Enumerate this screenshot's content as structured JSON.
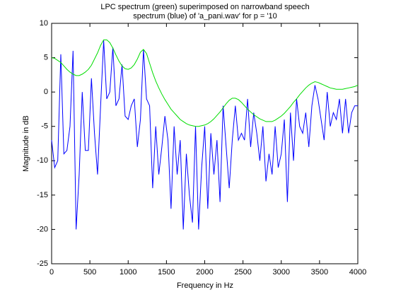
{
  "chart_data": {
    "type": "line",
    "title": [
      "LPC spectrum (green) superimposed on narrowband speech",
      "spectrum (blue) of 'a_pani.wav' for p = '10"
    ],
    "xlabel": "Frequency in Hz",
    "ylabel": "Magnitude in dB",
    "x": [
      0,
      40,
      80,
      120,
      160,
      200,
      240,
      280,
      320,
      360,
      400,
      440,
      480,
      520,
      560,
      600,
      640,
      680,
      720,
      760,
      800,
      840,
      880,
      920,
      960,
      1000,
      1040,
      1080,
      1120,
      1160,
      1200,
      1240,
      1280,
      1320,
      1360,
      1400,
      1440,
      1480,
      1520,
      1560,
      1600,
      1640,
      1680,
      1720,
      1760,
      1800,
      1840,
      1880,
      1920,
      1960,
      2000,
      2040,
      2080,
      2120,
      2160,
      2200,
      2240,
      2280,
      2320,
      2360,
      2400,
      2440,
      2480,
      2520,
      2560,
      2600,
      2640,
      2680,
      2720,
      2760,
      2800,
      2840,
      2880,
      2920,
      2960,
      3000,
      3040,
      3080,
      3120,
      3160,
      3200,
      3240,
      3280,
      3320,
      3360,
      3400,
      3440,
      3480,
      3520,
      3560,
      3600,
      3640,
      3680,
      3720,
      3760,
      3800,
      3840,
      3880,
      3920,
      3960,
      4000
    ],
    "series": [
      {
        "color": "#0000ff",
        "values": [
          -7,
          -11,
          -10,
          5.5,
          -9,
          -8.5,
          -5,
          6,
          -20,
          -12,
          0,
          -8.5,
          -8.5,
          2,
          -6,
          -12,
          -2,
          7.5,
          -1,
          0,
          6.5,
          -2,
          -1,
          4,
          -3.5,
          -4,
          -2,
          -1,
          -8,
          -4,
          6.2,
          -1,
          -2,
          -14,
          -5,
          -12,
          -8,
          -3.5,
          -7,
          -17,
          -5,
          -12,
          -7,
          -20,
          -9,
          -15,
          -19,
          -5,
          -20,
          -11,
          -5,
          -17,
          -6,
          -12,
          -7,
          -16,
          -2,
          -8,
          -14,
          -7,
          -2,
          -7,
          -6,
          -7,
          -1,
          -8,
          -3,
          -6,
          -10,
          -5,
          -13,
          -9,
          -12,
          -5,
          -11,
          -9,
          -4,
          -16,
          -3,
          -10,
          -1,
          -5,
          -6,
          -3,
          -8,
          -2,
          1,
          -1,
          -4,
          -7,
          0,
          -5,
          -3,
          -4,
          -1,
          -6,
          -1,
          -6,
          -3,
          -2,
          -2
        ]
      },
      {
        "color": "#00dd00",
        "values": [
          5,
          4.9,
          4.6,
          4.3,
          3.8,
          3.3,
          2.9,
          2.6,
          2.4,
          2.4,
          2.6,
          2.9,
          3.3,
          3.9,
          4.8,
          5.7,
          6.8,
          7.6,
          7.6,
          7.2,
          6.4,
          5.4,
          4.5,
          3.8,
          3.4,
          3.3,
          3.5,
          4,
          4.8,
          5.8,
          6.2,
          5.6,
          4.2,
          2.8,
          1.6,
          0.6,
          -0.3,
          -1.1,
          -1.8,
          -2.5,
          -3,
          -3.5,
          -4,
          -4.3,
          -4.6,
          -4.8,
          -4.9,
          -5,
          -5,
          -4.9,
          -4.8,
          -4.6,
          -4.3,
          -3.9,
          -3.4,
          -2.9,
          -2.3,
          -1.7,
          -1.2,
          -0.9,
          -0.9,
          -1.1,
          -1.5,
          -2,
          -2.5,
          -2.9,
          -3.3,
          -3.6,
          -3.9,
          -4.1,
          -4.3,
          -4.3,
          -4.3,
          -4.1,
          -3.8,
          -3.5,
          -3.1,
          -2.6,
          -2.1,
          -1.5,
          -1,
          -0.4,
          0.1,
          0.6,
          1,
          1.3,
          1.5,
          1.4,
          1.2,
          1,
          0.8,
          0.6,
          0.5,
          0.4,
          0.4,
          0.4,
          0.5,
          0.6,
          0.7,
          0.8,
          1
        ]
      }
    ],
    "xlim": [
      0,
      4000
    ],
    "xticks": [
      0,
      500,
      1000,
      1500,
      2000,
      2500,
      3000,
      3500,
      4000
    ],
    "ylim": [
      -25,
      10
    ],
    "yticks": [
      -25,
      -20,
      -15,
      -10,
      -5,
      0,
      5,
      10
    ]
  }
}
